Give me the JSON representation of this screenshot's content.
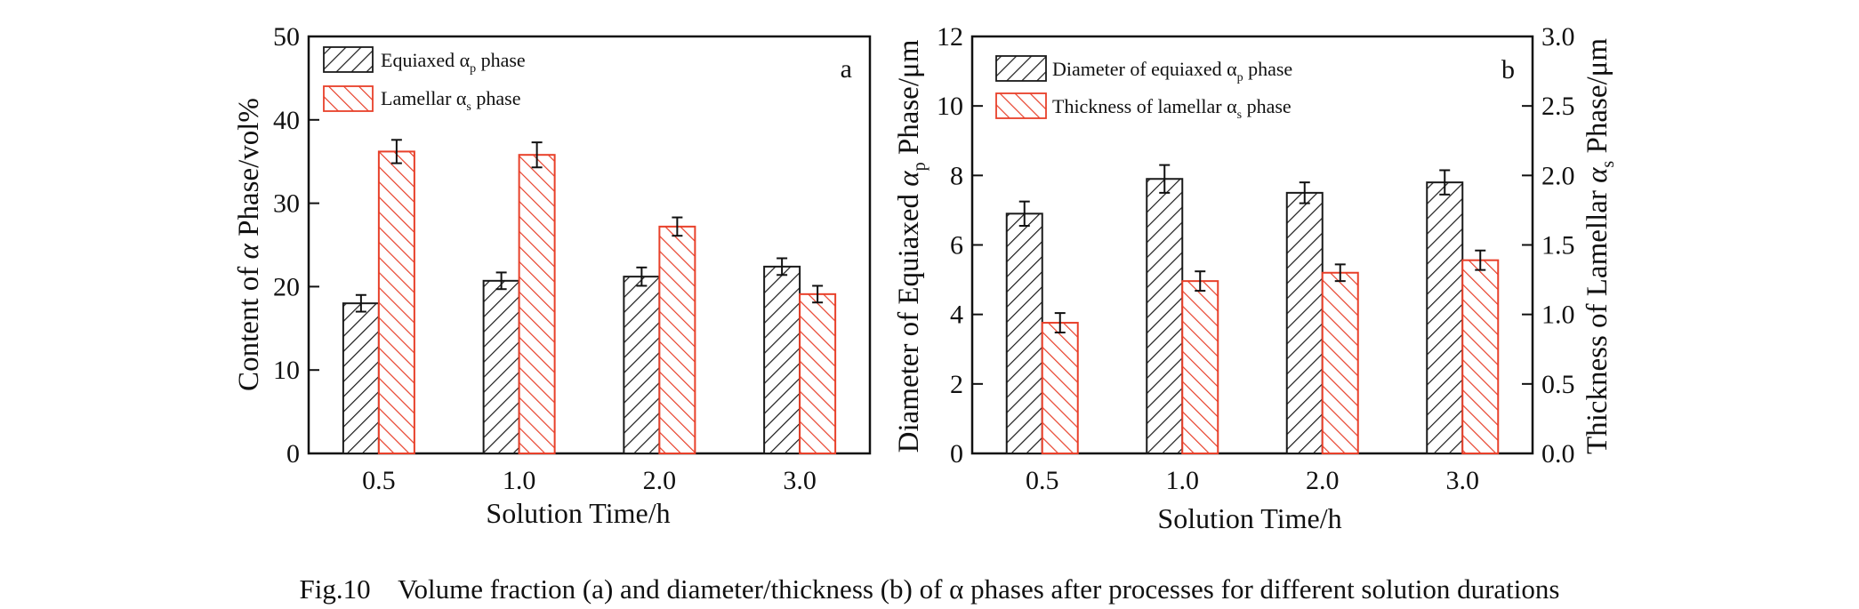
{
  "figure_caption": "Fig.10    Volume fraction (a) and diameter/thickness (b) of α phases after processes for different solution durations",
  "colors": {
    "equiaxed": "#1a1a1a",
    "lamellar": "#e8402a",
    "axis": "#111111",
    "background": "#ffffff"
  },
  "chart_data": [
    {
      "type": "bar",
      "panel": "a",
      "categories": [
        "0.5",
        "1.0",
        "2.0",
        "3.0"
      ],
      "xlabel": "Solution Time/h",
      "ylabel": "Content of α Phase/vol%",
      "ylim": [
        0,
        50
      ],
      "yticks": [
        "0",
        "10",
        "20",
        "30",
        "40",
        "50"
      ],
      "legend_placement": "top-left",
      "series": [
        {
          "name": "Equiaxed αp phase",
          "legend_main": "Equiaxed α",
          "legend_sub": "p",
          "legend_tail": " phase",
          "hatch": "equiaxed",
          "values": [
            18.0,
            20.7,
            21.2,
            22.4
          ],
          "errors": [
            1.0,
            1.0,
            1.1,
            1.0
          ]
        },
        {
          "name": "Lamellar αs phase",
          "legend_main": "Lamellar α",
          "legend_sub": "s",
          "legend_tail": " phase",
          "hatch": "lamellar",
          "values": [
            36.2,
            35.8,
            27.2,
            19.1
          ],
          "errors": [
            1.4,
            1.5,
            1.1,
            1.0
          ]
        }
      ]
    },
    {
      "type": "bar",
      "panel": "b",
      "categories": [
        "0.5",
        "1.0",
        "2.0",
        "3.0"
      ],
      "xlabel": "Solution Time/h",
      "ylabel_left": "Diameter of Equiaxed αp Phase/μm",
      "ylabel_right": "Thickness of Lamellar αs Phase/μm",
      "ylim_left": [
        0,
        12
      ],
      "ylim_right": [
        0,
        3.0
      ],
      "yticks_left": [
        "0",
        "2",
        "4",
        "6",
        "8",
        "10",
        "12"
      ],
      "yticks_right": [
        "0.0",
        "0.5",
        "1.0",
        "1.5",
        "2.0",
        "2.5",
        "3.0"
      ],
      "legend_placement": "top-left",
      "series": [
        {
          "name": "Diameter of equiaxed αp phase",
          "legend_main": "Diameter of equiaxed α",
          "legend_sub": "p",
          "legend_tail": " phase",
          "axis": "left",
          "hatch": "equiaxed",
          "values": [
            6.9,
            7.9,
            7.5,
            7.8
          ],
          "errors": [
            0.35,
            0.4,
            0.3,
            0.35
          ]
        },
        {
          "name": "Thickness of lamellar αs phase",
          "legend_main": "Thickness of lamellar α",
          "legend_sub": "s",
          "legend_tail": " phase",
          "axis": "right",
          "hatch": "lamellar",
          "values": [
            0.94,
            1.24,
            1.3,
            1.39
          ],
          "errors": [
            0.07,
            0.07,
            0.06,
            0.07
          ]
        }
      ]
    }
  ]
}
